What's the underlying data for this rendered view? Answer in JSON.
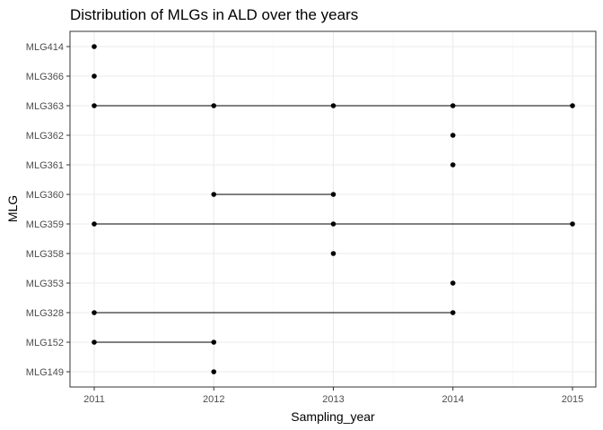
{
  "chart_data": {
    "type": "scatter",
    "title": "Distribution of MLGs in ALD over the years",
    "xlabel": "Sampling_year",
    "ylabel": "MLG",
    "x_ticks": [
      "2011",
      "2012",
      "2013",
      "2014",
      "2015"
    ],
    "xlim": [
      2010.9,
      2015.1
    ],
    "categories": [
      "MLG149",
      "MLG152",
      "MLG328",
      "MLG353",
      "MLG358",
      "MLG359",
      "MLG360",
      "MLG361",
      "MLG362",
      "MLG363",
      "MLG366",
      "MLG414"
    ],
    "grid": true,
    "legend": "none",
    "points": [
      {
        "mlg": "MLG414",
        "years": [
          2011
        ]
      },
      {
        "mlg": "MLG366",
        "years": [
          2011
        ]
      },
      {
        "mlg": "MLG363",
        "years": [
          2011,
          2012,
          2013,
          2014,
          2015
        ]
      },
      {
        "mlg": "MLG362",
        "years": [
          2014
        ]
      },
      {
        "mlg": "MLG361",
        "years": [
          2014
        ]
      },
      {
        "mlg": "MLG360",
        "years": [
          2012,
          2013
        ]
      },
      {
        "mlg": "MLG359",
        "years": [
          2011,
          2013,
          2015
        ]
      },
      {
        "mlg": "MLG358",
        "years": [
          2013
        ]
      },
      {
        "mlg": "MLG353",
        "years": [
          2014
        ]
      },
      {
        "mlg": "MLG328",
        "years": [
          2011,
          2014
        ]
      },
      {
        "mlg": "MLG152",
        "years": [
          2011,
          2012
        ]
      },
      {
        "mlg": "MLG149",
        "years": [
          2012
        ]
      }
    ],
    "colors": {
      "point": "#000000",
      "line": "#000000",
      "grid_major": "#ebebeb",
      "grid_minor": "#f5f5f5",
      "panel_border": "#333333"
    }
  }
}
